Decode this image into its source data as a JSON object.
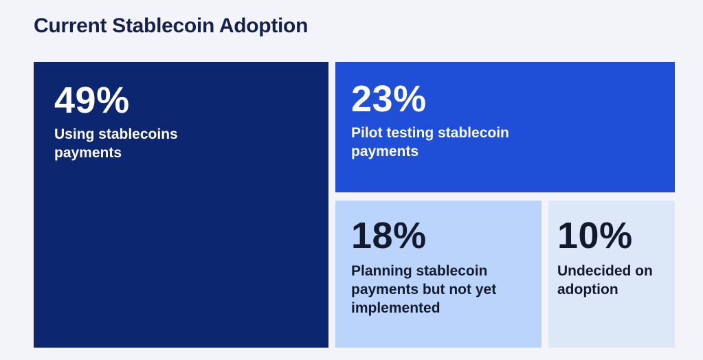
{
  "chart_data": {
    "type": "treemap",
    "title": "Current Stablecoin Adoption",
    "items": [
      {
        "value": 49,
        "label": "49%",
        "text": "Using stablecoins payments",
        "color": "#0c2670",
        "text_color": "#ffffff"
      },
      {
        "value": 23,
        "label": "23%",
        "text": "Pilot testing stablecoin payments",
        "color": "#1f4fd6",
        "text_color": "#ffffff"
      },
      {
        "value": 18,
        "label": "18%",
        "text": "Planning stablecoin payments but not yet implemented",
        "color": "#bad4fc",
        "text_color": "#141a2e"
      },
      {
        "value": 10,
        "label": "10%",
        "text": "Undecided on adoption",
        "color": "#dce7f8",
        "text_color": "#141a2e"
      }
    ]
  }
}
